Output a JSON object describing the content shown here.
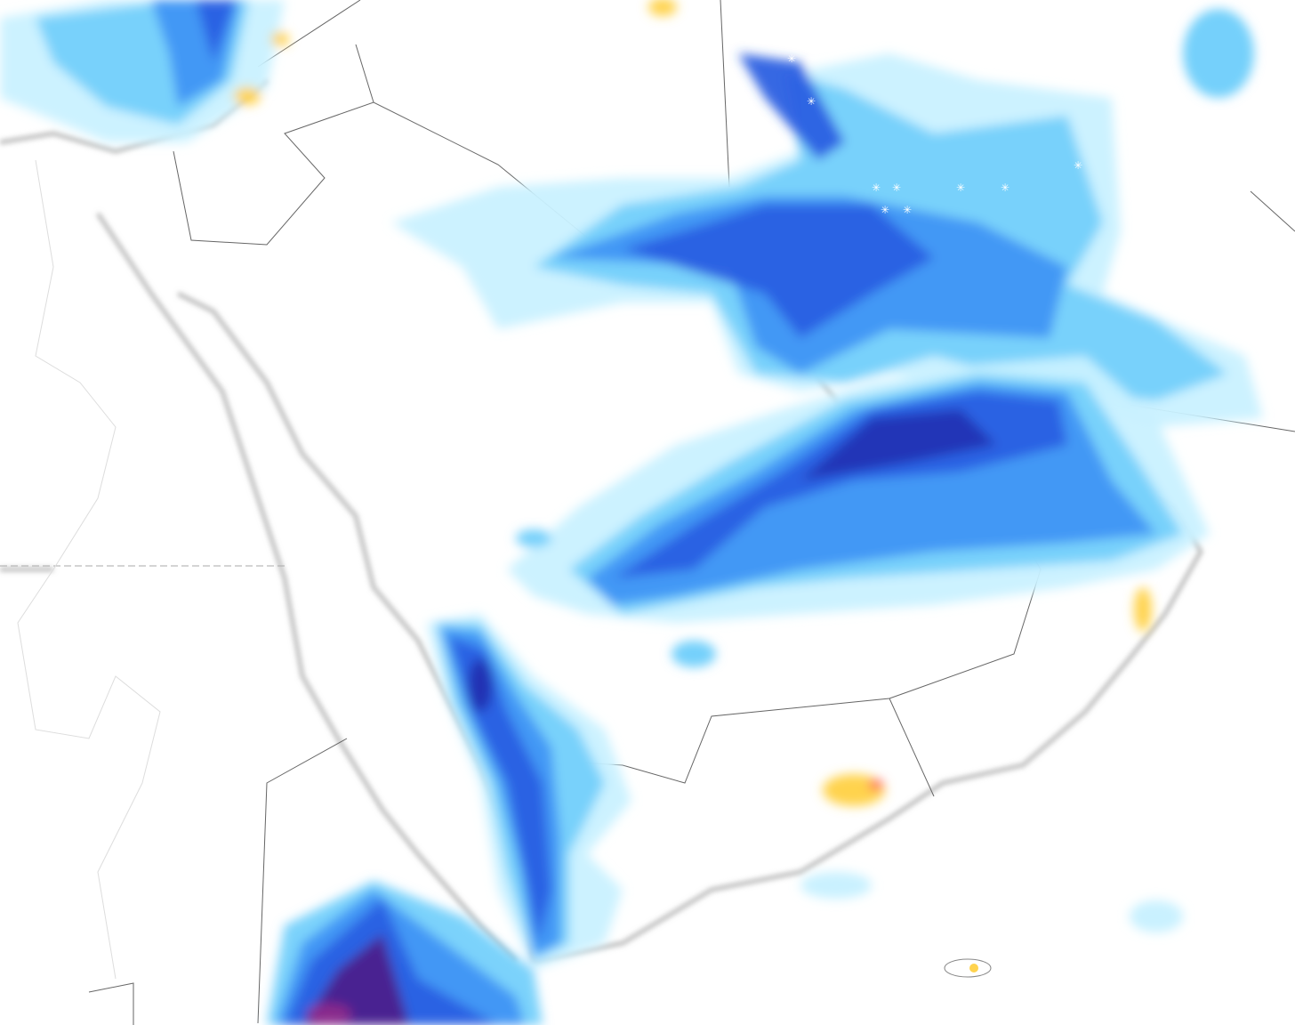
{
  "map": {
    "region": "Arabian Peninsula",
    "layer": "precipitation",
    "colors": {
      "background": "#ffffff",
      "sea_shadow": "#cfcfcf",
      "border": "#555555",
      "precip_very_light": "#c9f1ff",
      "precip_light": "#74d0fb",
      "precip_moderate": "#3f95f4",
      "precip_heavy": "#2a5fe2",
      "precip_very_heavy": "#2233b4",
      "precip_extreme": "#4a1f8c",
      "precip_magenta": "#8a2a8c",
      "mixed_yellow": "#ffd34e",
      "mixed_red": "#ff6060",
      "snow_symbol": "#ffffff"
    }
  }
}
